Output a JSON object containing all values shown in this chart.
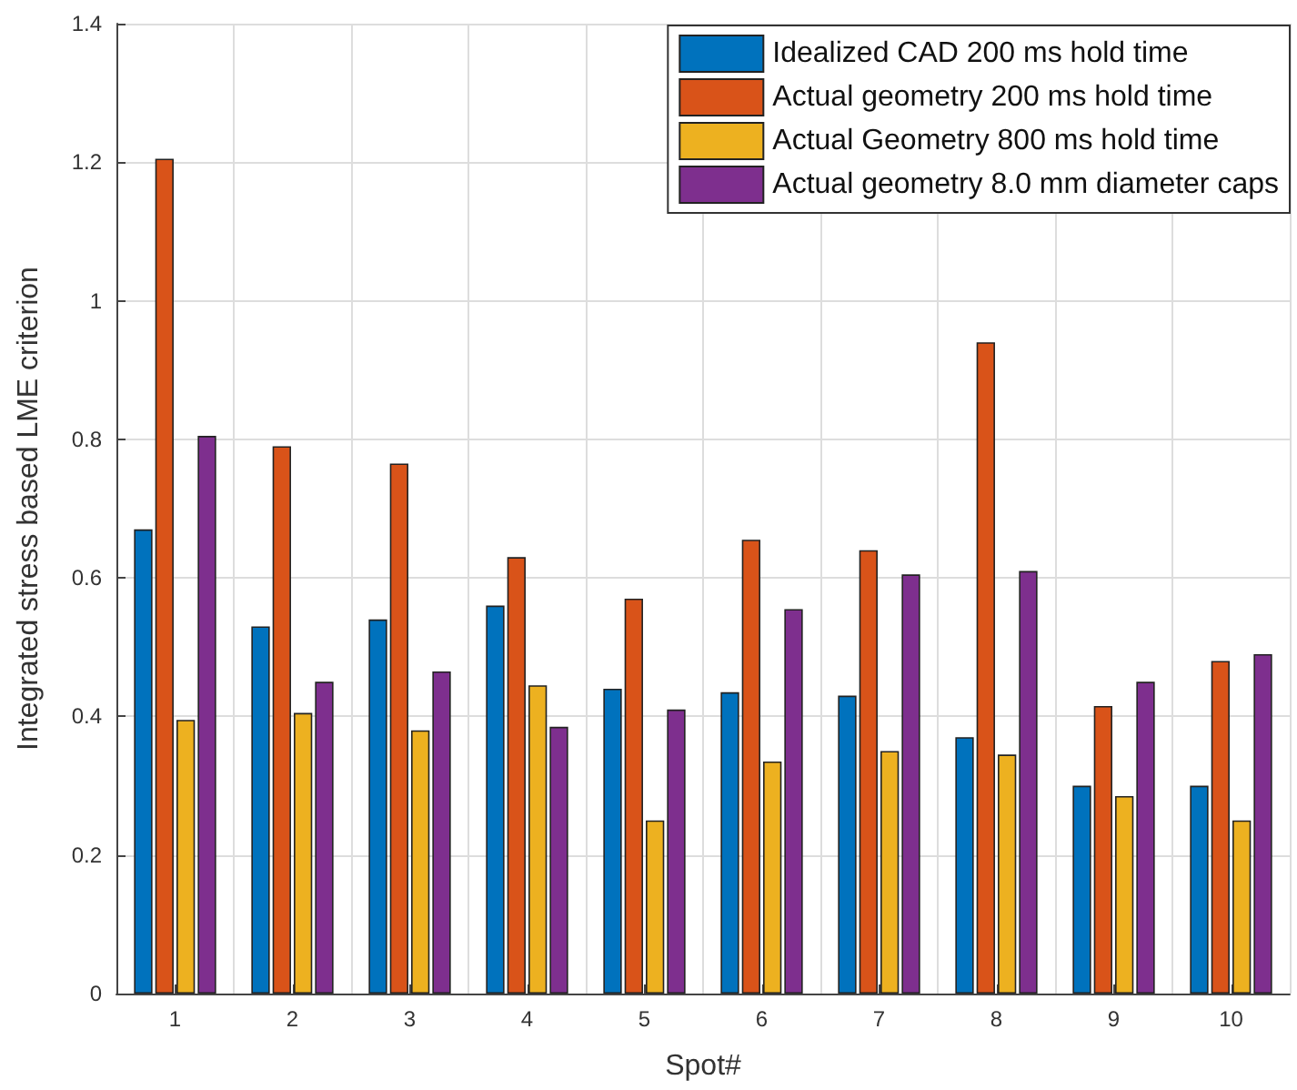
{
  "chart_data": {
    "type": "bar",
    "xlabel": "Spot#",
    "ylabel": "Integrated stress based LME criterion",
    "categories": [
      "1",
      "2",
      "3",
      "4",
      "5",
      "6",
      "7",
      "8",
      "9",
      "10"
    ],
    "series": [
      {
        "name": "Idealized CAD 200 ms hold time",
        "color": "#0072bd",
        "values": [
          0.67,
          0.53,
          0.54,
          0.56,
          0.44,
          0.435,
          0.43,
          0.37,
          0.3,
          0.3
        ]
      },
      {
        "name": "Actual geometry 200 ms hold time",
        "color": "#d95319",
        "values": [
          1.205,
          0.79,
          0.765,
          0.63,
          0.57,
          0.655,
          0.64,
          0.94,
          0.415,
          0.48
        ]
      },
      {
        "name": "Actual Geometry 800 ms hold time",
        "color": "#edb120",
        "values": [
          0.395,
          0.405,
          0.38,
          0.445,
          0.25,
          0.335,
          0.35,
          0.345,
          0.285,
          0.25
        ]
      },
      {
        "name": "Actual geometry 8.0 mm diameter caps",
        "color": "#7e2f8e",
        "values": [
          0.805,
          0.45,
          0.465,
          0.385,
          0.41,
          0.555,
          0.605,
          0.61,
          0.45,
          0.49
        ]
      }
    ],
    "ylim": [
      0,
      1.4
    ],
    "yticks": [
      0,
      0.2,
      0.4,
      0.6,
      0.8,
      1,
      1.2,
      1.4
    ],
    "grid": true,
    "legend": "top right"
  }
}
